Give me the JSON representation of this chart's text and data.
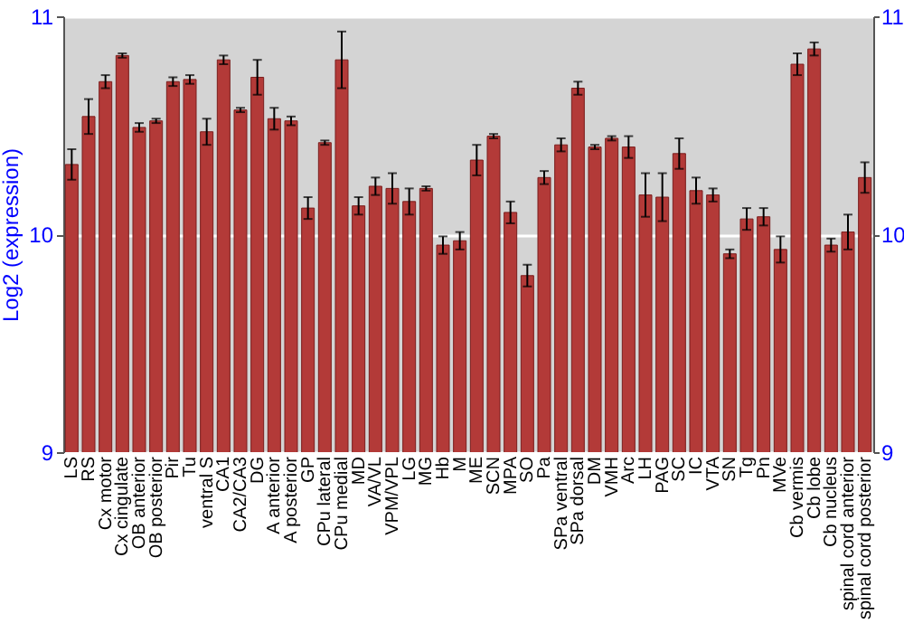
{
  "chart_data": {
    "type": "bar",
    "ylabel": "Log2 (expression)",
    "categories": [
      "LS",
      "RS",
      "Cx motor",
      "Cx cingulate",
      "OB anterior",
      "OB posterior",
      "Pir",
      "Tu",
      "ventral S",
      "CA1",
      "CA2/CA3",
      "DG",
      "A anterior",
      "A posterior",
      "GP",
      "CPu lateral",
      "CPu medial",
      "MD",
      "VA/VL",
      "VPM/VPL",
      "LG",
      "MG",
      "Hb",
      "M",
      "ME",
      "SCN",
      "MPA",
      "SO",
      "Pa",
      "SPa ventral",
      "SPa dorsal",
      "DM",
      "VMH",
      "Arc",
      "LH",
      "PAG",
      "SC",
      "IC",
      "VTA",
      "SN",
      "Tg",
      "Pn",
      "MVe",
      "Cb vermis",
      "Cb lobe",
      "Cb nucleus",
      "spinal cord anterior",
      "spinal cord posterior"
    ],
    "values": [
      10.32,
      10.54,
      10.7,
      10.82,
      10.49,
      10.52,
      10.7,
      10.71,
      10.47,
      10.8,
      10.57,
      10.72,
      10.53,
      10.52,
      10.12,
      10.42,
      10.8,
      10.13,
      10.22,
      10.21,
      10.15,
      10.21,
      9.95,
      9.97,
      10.34,
      10.45,
      10.1,
      9.81,
      10.26,
      10.41,
      10.67,
      10.4,
      10.44,
      10.4,
      10.18,
      10.17,
      10.37,
      10.2,
      10.18,
      9.91,
      10.07,
      10.08,
      9.93,
      10.78,
      10.85,
      9.95,
      10.01,
      10.26
    ],
    "errors": [
      0.07,
      0.08,
      0.03,
      0.01,
      0.02,
      0.01,
      0.02,
      0.02,
      0.06,
      0.02,
      0.01,
      0.08,
      0.05,
      0.02,
      0.05,
      0.01,
      0.13,
      0.04,
      0.04,
      0.07,
      0.06,
      0.01,
      0.04,
      0.04,
      0.07,
      0.01,
      0.05,
      0.05,
      0.03,
      0.03,
      0.03,
      0.01,
      0.01,
      0.05,
      0.1,
      0.11,
      0.07,
      0.06,
      0.03,
      0.02,
      0.05,
      0.04,
      0.06,
      0.05,
      0.03,
      0.03,
      0.08,
      0.07
    ],
    "color": "#b33a38",
    "ylim": [
      9,
      11
    ],
    "yticks": [
      9,
      10,
      11
    ],
    "y2lim": [
      9,
      11
    ],
    "y2ticks": [
      9,
      10,
      11
    ],
    "grid": "y"
  }
}
